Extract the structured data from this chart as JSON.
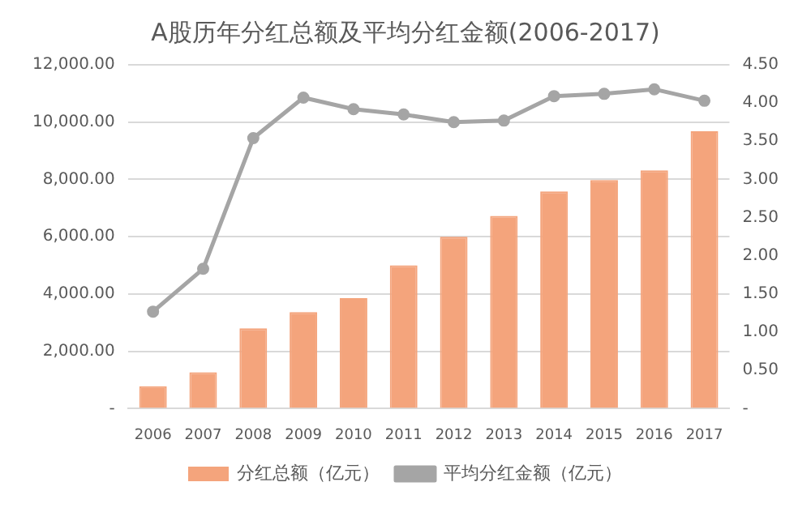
{
  "chart_data": {
    "type": "bar",
    "title": "A股历年分红总额及平均分红金额(2006-2017)",
    "categories": [
      "2006",
      "2007",
      "2008",
      "2009",
      "2010",
      "2011",
      "2012",
      "2013",
      "2014",
      "2015",
      "2016",
      "2017"
    ],
    "series": [
      {
        "name": "分红总额（亿元）",
        "color": "#f4a47c",
        "values": [
          780,
          1270,
          2800,
          3370,
          3860,
          5000,
          6000,
          6730,
          7580,
          7980,
          8320,
          9680
        ]
      },
      {
        "name": "平均分红金额（亿元）",
        "type": "line",
        "axis": "y2",
        "color": "#a5a5a5",
        "marker": "circle",
        "values": [
          1.27,
          1.83,
          3.54,
          4.07,
          3.92,
          3.85,
          3.75,
          3.77,
          4.09,
          4.12,
          4.18,
          4.03
        ]
      }
    ],
    "ylim": [
      0,
      12000
    ],
    "yticks": [
      {
        "value": 0,
        "label": "-"
      },
      {
        "value": 2000,
        "label": "2,000.00"
      },
      {
        "value": 4000,
        "label": "4,000.00"
      },
      {
        "value": 6000,
        "label": "6,000.00"
      },
      {
        "value": 8000,
        "label": "8,000.00"
      },
      {
        "value": 10000,
        "label": "10,000.00"
      },
      {
        "value": 12000,
        "label": "12,000.00"
      }
    ],
    "y2lim": [
      0,
      4.5
    ],
    "y2ticks": [
      {
        "value": 0,
        "label": "-"
      },
      {
        "value": 0.5,
        "label": "0.50"
      },
      {
        "value": 1,
        "label": "1.00"
      },
      {
        "value": 1.5,
        "label": "1.50"
      },
      {
        "value": 2,
        "label": "2.00"
      },
      {
        "value": 2.5,
        "label": "2.50"
      },
      {
        "value": 3,
        "label": "3.00"
      },
      {
        "value": 3.5,
        "label": "3.50"
      },
      {
        "value": 4,
        "label": "4.00"
      },
      {
        "value": 4.5,
        "label": "4.50"
      }
    ],
    "grid": "y",
    "legend": "bottom"
  }
}
